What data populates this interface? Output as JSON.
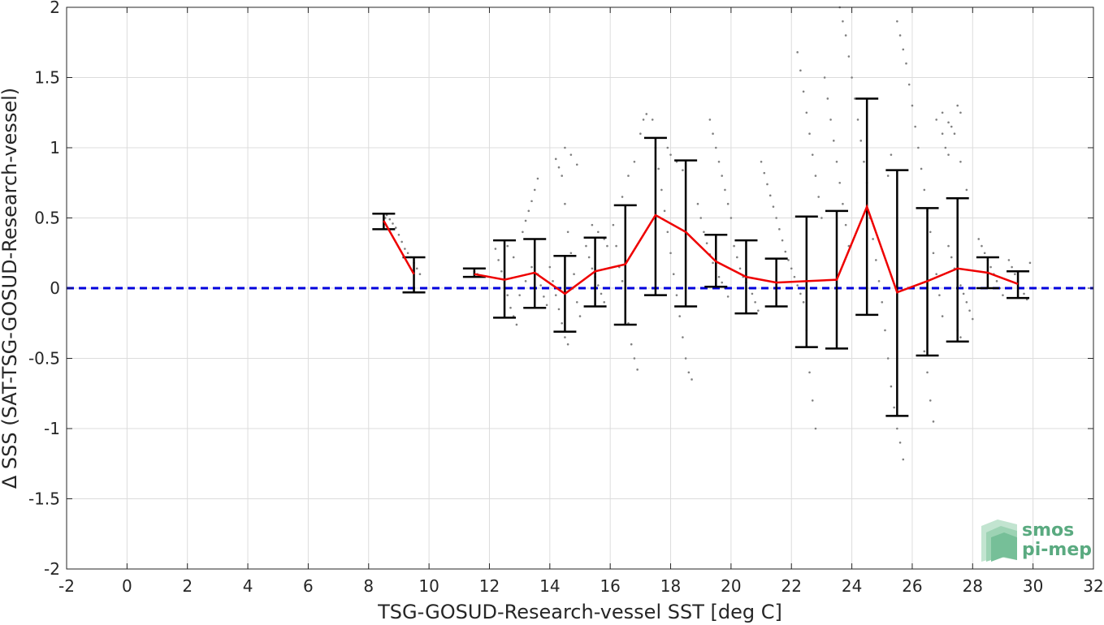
{
  "chart_data": {
    "type": "scatter",
    "title": "",
    "xlabel": "TSG-GOSUD-Research-vessel SST [deg C]",
    "ylabel": "Δ SSS (SAT-TSG-GOSUD-Research-vessel)",
    "xlim": [
      -2,
      32
    ],
    "ylim": [
      -2,
      2
    ],
    "xticks": [
      -2,
      0,
      2,
      4,
      6,
      8,
      10,
      12,
      14,
      16,
      18,
      20,
      22,
      24,
      26,
      28,
      30,
      32
    ],
    "yticks": [
      -2,
      -1.5,
      -1,
      -0.5,
      0,
      0.5,
      1,
      1.5,
      2
    ],
    "xtick_labels": [
      "-2",
      "0",
      "2",
      "4",
      "6",
      "8",
      "10",
      "12",
      "14",
      "16",
      "18",
      "20",
      "22",
      "24",
      "26",
      "28",
      "30",
      "32"
    ],
    "ytick_labels": [
      "-2",
      "-1.5",
      "-1",
      "-0.5",
      "0",
      "0.5",
      "1",
      "1.5",
      "2"
    ],
    "grid": true,
    "reference_line": {
      "y": 0,
      "color": "#0000dd",
      "style": "dashed"
    },
    "mean_line": {
      "color": "#ee0000",
      "x": [
        8.5,
        9.5,
        11.5,
        12.5,
        13.5,
        14.5,
        15.5,
        16.5,
        17.5,
        18.5,
        19.5,
        20.5,
        21.5,
        22.5,
        23.5,
        24.5,
        25.5,
        26.5,
        27.5,
        28.5,
        29.5
      ],
      "y": [
        0.48,
        0.1,
        0.1,
        0.06,
        0.11,
        -0.04,
        0.12,
        0.17,
        0.52,
        0.4,
        0.19,
        0.08,
        0.04,
        0.05,
        0.06,
        0.58,
        -0.03,
        0.05,
        0.14,
        0.11,
        0.03
      ],
      "segments": [
        [
          0,
          1
        ],
        [
          2,
          20
        ]
      ]
    },
    "error_bars": {
      "color": "#000000",
      "x": [
        8.5,
        9.5,
        11.5,
        12.5,
        13.5,
        14.5,
        15.5,
        16.5,
        17.5,
        18.5,
        19.5,
        20.5,
        21.5,
        22.5,
        23.5,
        24.5,
        25.5,
        26.5,
        27.5,
        28.5,
        29.5
      ],
      "low": [
        0.42,
        -0.03,
        0.08,
        -0.21,
        -0.14,
        -0.31,
        -0.13,
        -0.26,
        -0.05,
        -0.13,
        0.01,
        -0.18,
        -0.13,
        -0.42,
        -0.43,
        -0.19,
        -0.91,
        -0.48,
        -0.38,
        0.0,
        -0.07
      ],
      "high": [
        0.53,
        0.22,
        0.14,
        0.34,
        0.35,
        0.23,
        0.36,
        0.59,
        1.07,
        0.91,
        0.38,
        0.34,
        0.21,
        0.51,
        0.55,
        1.35,
        0.84,
        0.57,
        0.64,
        0.22,
        0.12
      ]
    },
    "scatter": {
      "color": "#808080",
      "note_free": true,
      "points": [
        [
          8.55,
          0.5
        ],
        [
          8.6,
          0.52
        ],
        [
          8.7,
          0.49
        ],
        [
          8.8,
          0.46
        ],
        [
          8.9,
          0.43
        ],
        [
          9.0,
          0.38
        ],
        [
          9.1,
          0.33
        ],
        [
          9.2,
          0.28
        ],
        [
          9.3,
          0.25
        ],
        [
          9.4,
          0.22
        ],
        [
          9.5,
          0.18
        ],
        [
          9.6,
          0.14
        ],
        [
          9.7,
          0.1
        ],
        [
          11.5,
          0.12
        ],
        [
          11.6,
          0.1
        ],
        [
          11.7,
          0.09
        ],
        [
          12.2,
          0.28
        ],
        [
          12.3,
          0.2
        ],
        [
          12.4,
          0.12
        ],
        [
          12.5,
          0.06
        ],
        [
          12.6,
          -0.05
        ],
        [
          12.7,
          -0.14
        ],
        [
          12.8,
          -0.2
        ],
        [
          12.9,
          -0.26
        ],
        [
          12.6,
          0.3
        ],
        [
          12.8,
          0.22
        ],
        [
          13.1,
          0.4
        ],
        [
          13.2,
          0.48
        ],
        [
          13.3,
          0.55
        ],
        [
          13.4,
          0.62
        ],
        [
          13.5,
          0.7
        ],
        [
          13.6,
          0.78
        ],
        [
          13.5,
          0.2
        ],
        [
          13.6,
          0.1
        ],
        [
          13.7,
          0.02
        ],
        [
          13.8,
          -0.06
        ],
        [
          13.9,
          -0.12
        ],
        [
          13.4,
          0.15
        ],
        [
          13.2,
          0.05
        ],
        [
          13.0,
          -0.05
        ],
        [
          14.0,
          0.15
        ],
        [
          14.1,
          0.05
        ],
        [
          14.2,
          -0.05
        ],
        [
          14.3,
          -0.15
        ],
        [
          14.4,
          -0.25
        ],
        [
          14.5,
          -0.35
        ],
        [
          14.6,
          -0.4
        ],
        [
          14.2,
          0.92
        ],
        [
          14.3,
          0.86
        ],
        [
          14.4,
          0.8
        ],
        [
          14.5,
          0.6
        ],
        [
          14.6,
          0.4
        ],
        [
          14.7,
          0.25
        ],
        [
          14.8,
          0.1
        ],
        [
          14.9,
          -0.1
        ],
        [
          15.0,
          -0.2
        ],
        [
          14.5,
          1.0
        ],
        [
          14.7,
          0.95
        ],
        [
          14.9,
          0.88
        ],
        [
          15.2,
          0.3
        ],
        [
          15.3,
          0.22
        ],
        [
          15.4,
          0.14
        ],
        [
          15.5,
          0.08
        ],
        [
          15.6,
          0.02
        ],
        [
          15.7,
          -0.04
        ],
        [
          15.8,
          -0.1
        ],
        [
          15.4,
          0.45
        ],
        [
          15.6,
          0.4
        ],
        [
          15.8,
          0.35
        ],
        [
          15.9,
          0.3
        ],
        [
          16.1,
          0.45
        ],
        [
          16.2,
          0.3
        ],
        [
          16.3,
          0.15
        ],
        [
          16.4,
          0.05
        ],
        [
          16.5,
          -0.1
        ],
        [
          16.6,
          -0.25
        ],
        [
          16.7,
          -0.4
        ],
        [
          16.8,
          -0.5
        ],
        [
          16.9,
          -0.58
        ],
        [
          16.4,
          0.65
        ],
        [
          16.6,
          0.8
        ],
        [
          16.8,
          0.9
        ],
        [
          17.0,
          1.1
        ],
        [
          17.1,
          1.2
        ],
        [
          17.2,
          1.24
        ],
        [
          17.4,
          1.2
        ],
        [
          17.5,
          1.0
        ],
        [
          17.6,
          0.85
        ],
        [
          17.7,
          0.7
        ],
        [
          17.8,
          0.55
        ],
        [
          17.9,
          0.4
        ],
        [
          18.0,
          0.25
        ],
        [
          18.1,
          0.1
        ],
        [
          18.2,
          -0.05
        ],
        [
          18.3,
          -0.2
        ],
        [
          18.4,
          -0.35
        ],
        [
          18.5,
          -0.5
        ],
        [
          18.6,
          -0.6
        ],
        [
          18.7,
          -0.65
        ],
        [
          17.9,
          1.0
        ],
        [
          18.0,
          0.95
        ],
        [
          18.2,
          0.9
        ],
        [
          18.4,
          0.84
        ],
        [
          18.9,
          0.6
        ],
        [
          19.0,
          0.5
        ],
        [
          19.1,
          0.4
        ],
        [
          19.2,
          0.32
        ],
        [
          19.3,
          0.24
        ],
        [
          19.4,
          0.18
        ],
        [
          19.5,
          0.12
        ],
        [
          19.6,
          0.08
        ],
        [
          19.7,
          0.04
        ],
        [
          19.8,
          0.0
        ],
        [
          19.9,
          -0.06
        ],
        [
          19.3,
          1.2
        ],
        [
          19.4,
          1.1
        ],
        [
          19.5,
          1.0
        ],
        [
          19.6,
          0.9
        ],
        [
          19.7,
          0.8
        ],
        [
          19.8,
          0.7
        ],
        [
          19.9,
          0.6
        ],
        [
          20.0,
          0.5
        ],
        [
          20.1,
          0.3
        ],
        [
          20.2,
          0.22
        ],
        [
          20.3,
          0.14
        ],
        [
          20.4,
          0.08
        ],
        [
          20.5,
          0.04
        ],
        [
          20.6,
          0.0
        ],
        [
          20.7,
          -0.04
        ],
        [
          20.8,
          -0.1
        ],
        [
          20.9,
          -0.16
        ],
        [
          21.0,
          0.9
        ],
        [
          21.1,
          0.82
        ],
        [
          21.2,
          0.74
        ],
        [
          21.3,
          0.66
        ],
        [
          21.4,
          0.58
        ],
        [
          21.5,
          0.5
        ],
        [
          21.6,
          0.42
        ],
        [
          21.7,
          0.34
        ],
        [
          21.8,
          0.26
        ],
        [
          21.9,
          0.2
        ],
        [
          22.0,
          0.14
        ],
        [
          22.1,
          0.08
        ],
        [
          22.2,
          0.02
        ],
        [
          22.3,
          -0.04
        ],
        [
          22.4,
          -0.1
        ],
        [
          22.5,
          -0.3
        ],
        [
          22.6,
          -0.6
        ],
        [
          22.7,
          -0.8
        ],
        [
          22.8,
          -1.0
        ],
        [
          22.2,
          1.68
        ],
        [
          22.3,
          1.55
        ],
        [
          22.4,
          1.4
        ],
        [
          22.5,
          1.25
        ],
        [
          22.6,
          1.1
        ],
        [
          22.7,
          0.95
        ],
        [
          22.8,
          0.8
        ],
        [
          22.9,
          0.65
        ],
        [
          23.0,
          0.5
        ],
        [
          23.1,
          1.5
        ],
        [
          23.2,
          1.35
        ],
        [
          23.3,
          1.2
        ],
        [
          23.4,
          1.05
        ],
        [
          23.5,
          0.9
        ],
        [
          23.6,
          0.75
        ],
        [
          23.7,
          0.6
        ],
        [
          23.8,
          0.45
        ],
        [
          23.9,
          0.3
        ],
        [
          23.6,
          2.0
        ],
        [
          23.7,
          1.9
        ],
        [
          23.8,
          1.8
        ],
        [
          23.9,
          1.65
        ],
        [
          24.0,
          1.5
        ],
        [
          24.1,
          1.35
        ],
        [
          24.2,
          1.2
        ],
        [
          24.3,
          1.05
        ],
        [
          24.4,
          0.9
        ],
        [
          24.5,
          0.75
        ],
        [
          24.6,
          0.5
        ],
        [
          24.7,
          0.35
        ],
        [
          24.8,
          0.2
        ],
        [
          24.9,
          0.05
        ],
        [
          25.0,
          -0.1
        ],
        [
          25.1,
          -0.3
        ],
        [
          25.2,
          -0.5
        ],
        [
          25.3,
          -0.7
        ],
        [
          25.4,
          -0.85
        ],
        [
          25.5,
          -1.0
        ],
        [
          25.6,
          -1.1
        ],
        [
          25.7,
          -1.22
        ],
        [
          25.2,
          0.8
        ],
        [
          25.3,
          0.95
        ],
        [
          25.5,
          1.9
        ],
        [
          25.6,
          1.8
        ],
        [
          25.7,
          1.7
        ],
        [
          25.8,
          1.6
        ],
        [
          25.9,
          1.45
        ],
        [
          26.0,
          1.3
        ],
        [
          26.1,
          1.15
        ],
        [
          26.2,
          1.0
        ],
        [
          26.3,
          0.85
        ],
        [
          26.4,
          0.7
        ],
        [
          26.5,
          0.55
        ],
        [
          26.6,
          0.4
        ],
        [
          26.7,
          0.25
        ],
        [
          26.8,
          0.1
        ],
        [
          26.9,
          -0.05
        ],
        [
          27.0,
          -0.2
        ],
        [
          26.4,
          -0.45
        ],
        [
          26.5,
          -0.6
        ],
        [
          26.6,
          -0.8
        ],
        [
          26.7,
          -0.95
        ],
        [
          26.8,
          1.2
        ],
        [
          27.0,
          1.25
        ],
        [
          27.2,
          1.18
        ],
        [
          27.4,
          1.1
        ],
        [
          27.6,
          0.9
        ],
        [
          27.8,
          0.7
        ],
        [
          27.0,
          1.1
        ],
        [
          27.1,
          1.0
        ],
        [
          27.2,
          0.95
        ],
        [
          27.3,
          1.15
        ],
        [
          27.5,
          1.3
        ],
        [
          27.6,
          1.25
        ],
        [
          27.2,
          0.3
        ],
        [
          27.3,
          0.22
        ],
        [
          27.4,
          0.14
        ],
        [
          27.5,
          0.08
        ],
        [
          27.6,
          0.02
        ],
        [
          27.7,
          -0.04
        ],
        [
          27.8,
          -0.1
        ],
        [
          27.9,
          -0.16
        ],
        [
          28.0,
          -0.22
        ],
        [
          27.5,
          -0.3
        ],
        [
          27.6,
          -0.35
        ],
        [
          28.2,
          0.35
        ],
        [
          28.3,
          0.3
        ],
        [
          28.4,
          0.25
        ],
        [
          28.5,
          0.2
        ],
        [
          28.6,
          0.15
        ],
        [
          28.7,
          0.1
        ],
        [
          28.8,
          0.05
        ],
        [
          28.9,
          0.0
        ],
        [
          29.0,
          -0.05
        ],
        [
          29.2,
          0.2
        ],
        [
          29.3,
          0.15
        ],
        [
          29.4,
          0.1
        ],
        [
          29.5,
          0.05
        ],
        [
          29.6,
          0.0
        ],
        [
          29.7,
          -0.04
        ],
        [
          29.8,
          -0.08
        ],
        [
          29.9,
          0.18
        ]
      ]
    }
  },
  "logo": {
    "line1": "smos",
    "line2": "pi-mep",
    "color": "#5aaa80"
  }
}
